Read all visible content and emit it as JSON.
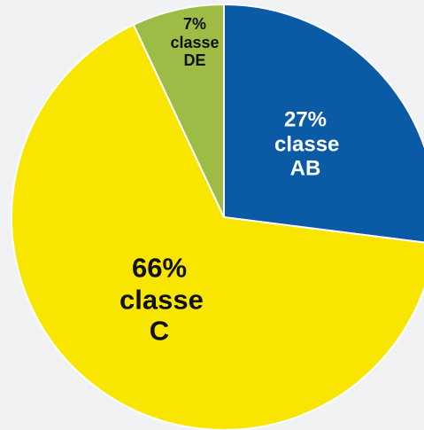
{
  "chart_data": {
    "type": "pie",
    "categories": [
      "classe AB",
      "classe C",
      "classe DE"
    ],
    "values": [
      27,
      66,
      7
    ],
    "value_labels": [
      "27%",
      "66%",
      "7%"
    ],
    "colors": [
      "#0b5aa6",
      "#f8e500",
      "#9cbc46"
    ]
  }
}
